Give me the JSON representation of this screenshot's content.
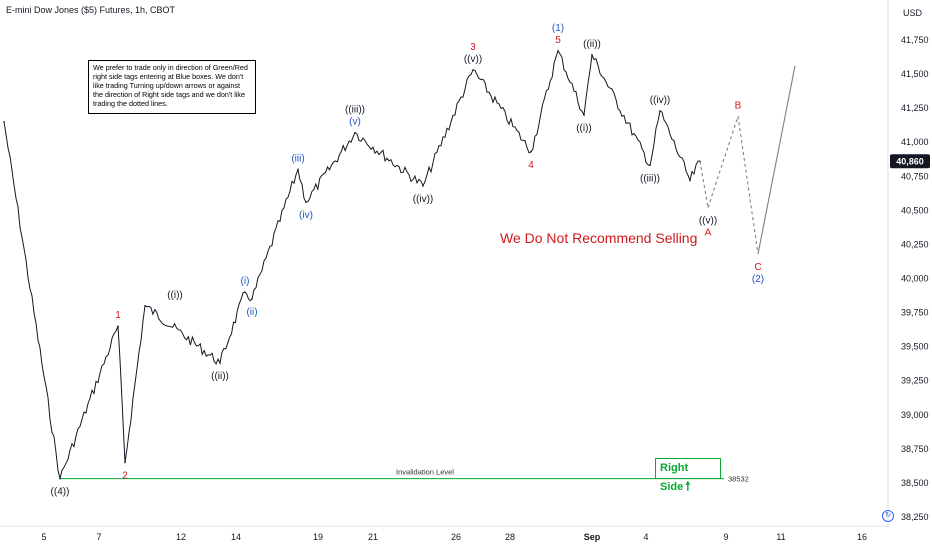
{
  "title": "E-mini Dow Jones ($5) Futures, 1h, CBOT",
  "currency": "USD",
  "note": "We prefer to trade only in direction of Green/Red right side tags entering at Blue boxes. We don't like trading Turning up/down arrows or against the direction of Right side tags and we don't like trading the dotted lines.",
  "warning": "We Do Not Recommend Selling",
  "right_side_label": "Right Side",
  "right_side_arrow": "🠕",
  "clock_icon": "clock-icon",
  "colors": {
    "price": "#131722",
    "red_label": "#d0191c",
    "blue_label": "#1e53c3",
    "green": "#0aa832",
    "projection": "#7f7f7f",
    "last_price_bg": "#131722"
  },
  "chart_data": {
    "type": "line",
    "ylim": [
      38250,
      41875
    ],
    "y_ticks": [
      "41,750",
      "41,500",
      "41,250",
      "41,000",
      "40,750",
      "40,500",
      "40,250",
      "40,000",
      "39,750",
      "39,500",
      "39,250",
      "39,000",
      "38,750",
      "38,500",
      "38,250"
    ],
    "x_ticks": [
      "5",
      "7",
      "12",
      "14",
      "19",
      "21",
      "26",
      "28",
      "Sep",
      "4",
      "9",
      "11",
      "16"
    ],
    "last_price": "40,860",
    "invalidation": {
      "label": "Invalidation Level",
      "value": 38532,
      "value_label": "38532"
    },
    "price_path": [
      {
        "x": "Aug 2",
        "y": 41150
      },
      {
        "x": "Aug 5",
        "y": 38532
      },
      {
        "x": "Aug 7",
        "y": 39650
      },
      {
        "x": "Aug 8",
        "y": 38650
      },
      {
        "x": "Aug 9",
        "y": 39800
      },
      {
        "x": "Aug 12",
        "y": 39380
      },
      {
        "x": "Aug 13",
        "y": 39900
      },
      {
        "x": "Aug 14",
        "y": 39850
      },
      {
        "x": "Aug 16",
        "y": 40800
      },
      {
        "x": "Aug 16 b",
        "y": 40560
      },
      {
        "x": "Aug 20",
        "y": 41070
      },
      {
        "x": "Aug 22",
        "y": 40680
      },
      {
        "x": "Aug 26",
        "y": 41530
      },
      {
        "x": "Aug 29",
        "y": 40930
      },
      {
        "x": "Aug 30",
        "y": 41670
      },
      {
        "x": "Sep 1",
        "y": 41200
      },
      {
        "x": "Sep 2",
        "y": 41640
      },
      {
        "x": "Sep 4",
        "y": 40830
      },
      {
        "x": "Sep 5",
        "y": 41230
      },
      {
        "x": "Sep 6",
        "y": 40720
      },
      {
        "x": "Sep 8",
        "y": 40860
      }
    ],
    "projection": [
      {
        "x": "Sep 8",
        "y": 40860,
        "dashed": true
      },
      {
        "x": "Sep 9",
        "y": 40520,
        "dashed": true
      },
      {
        "x": "Sep 10",
        "y": 41190,
        "dashed": true
      },
      {
        "x": "Sep 11",
        "y": 40180,
        "dashed": true
      },
      {
        "x": "Sep 12",
        "y": 41560,
        "dashed": false
      }
    ],
    "labels": [
      {
        "text": "((4))",
        "color": "black",
        "x": "Aug 5",
        "y": 38532,
        "pos": "below"
      },
      {
        "text": "1",
        "color": "red",
        "x": "Aug 7",
        "y": 39650,
        "pos": "above"
      },
      {
        "text": "2",
        "color": "red",
        "x": "Aug 8",
        "y": 38650,
        "pos": "below"
      },
      {
        "text": "((i))",
        "color": "black",
        "x": "Aug 11",
        "y": 39800,
        "pos": "above"
      },
      {
        "text": "((ii))",
        "color": "black",
        "x": "Aug 12",
        "y": 39380,
        "pos": "below"
      },
      {
        "text": "(i)",
        "color": "blue",
        "x": "Aug 13",
        "y": 39900,
        "pos": "above"
      },
      {
        "text": "(ii)",
        "color": "blue",
        "x": "Aug 14",
        "y": 39850,
        "pos": "below"
      },
      {
        "text": "(iii)",
        "color": "blue",
        "x": "Aug 16",
        "y": 40800,
        "pos": "above"
      },
      {
        "text": "(iv)",
        "color": "blue",
        "x": "Aug 16 b",
        "y": 40560,
        "pos": "below"
      },
      {
        "text": "((iii))",
        "color": "black",
        "x": "Aug 20",
        "y": 41070,
        "pos": "above2"
      },
      {
        "text": "(v)",
        "color": "blue",
        "x": "Aug 20",
        "y": 41070,
        "pos": "above"
      },
      {
        "text": "((iv))",
        "color": "black",
        "x": "Aug 22",
        "y": 40680,
        "pos": "below"
      },
      {
        "text": "3",
        "color": "red",
        "x": "Aug 26",
        "y": 41530,
        "pos": "above2"
      },
      {
        "text": "((v))",
        "color": "black",
        "x": "Aug 26",
        "y": 41530,
        "pos": "above"
      },
      {
        "text": "4",
        "color": "red",
        "x": "Aug 29",
        "y": 40930,
        "pos": "below"
      },
      {
        "text": "(1)",
        "color": "blue",
        "x": "Aug 30",
        "y": 41670,
        "pos": "above2"
      },
      {
        "text": "5",
        "color": "red",
        "x": "Aug 30",
        "y": 41670,
        "pos": "above"
      },
      {
        "text": "((i))",
        "color": "black",
        "x": "Sep 1",
        "y": 41200,
        "pos": "below"
      },
      {
        "text": "((ii))",
        "color": "black",
        "x": "Sep 2",
        "y": 41640,
        "pos": "above"
      },
      {
        "text": "((iii))",
        "color": "black",
        "x": "Sep 4",
        "y": 40830,
        "pos": "below"
      },
      {
        "text": "((iv))",
        "color": "black",
        "x": "Sep 5",
        "y": 41230,
        "pos": "above"
      },
      {
        "text": "((v))",
        "color": "black",
        "x": "Sep 9",
        "y": 40520,
        "pos": "below"
      },
      {
        "text": "A",
        "color": "red",
        "x": "Sep 9",
        "y": 40520,
        "pos": "below2"
      },
      {
        "text": "B",
        "color": "red",
        "x": "Sep 10",
        "y": 41190,
        "pos": "above"
      },
      {
        "text": "C",
        "color": "red",
        "x": "Sep 11",
        "y": 40180,
        "pos": "below"
      },
      {
        "text": "(2)",
        "color": "blue",
        "x": "Sep 11",
        "y": 40180,
        "pos": "below2"
      }
    ]
  }
}
